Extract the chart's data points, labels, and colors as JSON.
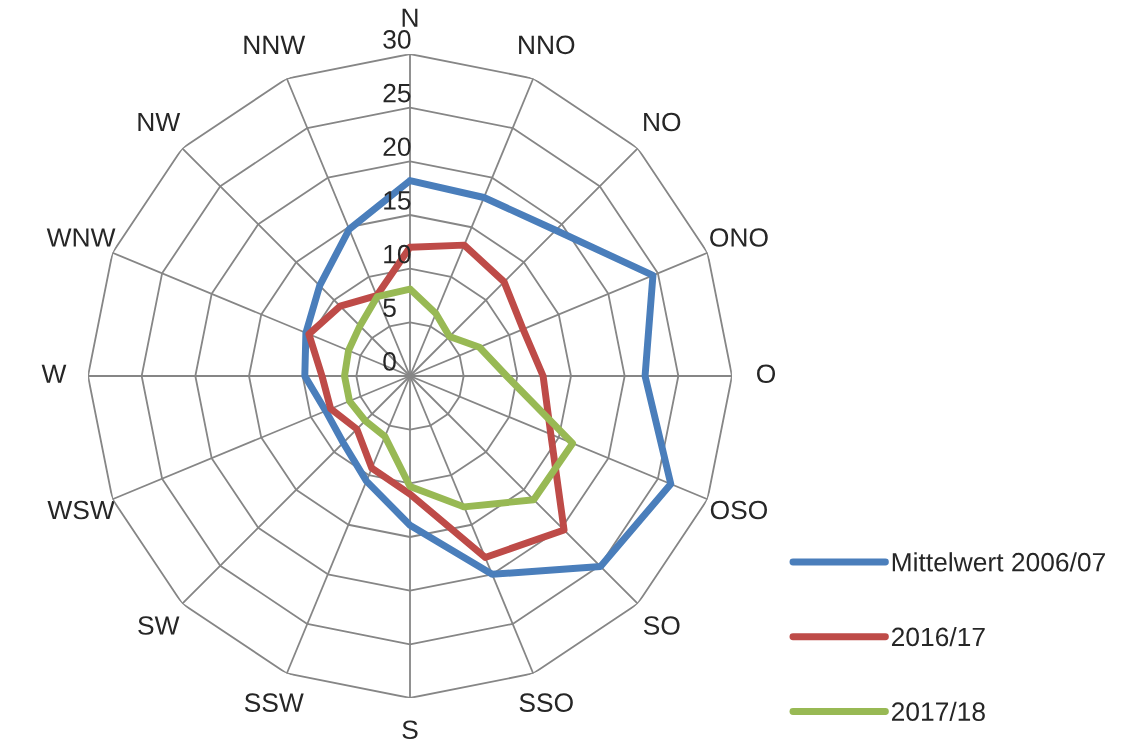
{
  "chart_data": {
    "type": "radar",
    "categories": [
      "N",
      "NNO",
      "NO",
      "ONO",
      "O",
      "OSO",
      "SO",
      "SSO",
      "S",
      "SSW",
      "SW",
      "WSW",
      "W",
      "WNW",
      "NW",
      "NNW"
    ],
    "series": [
      {
        "name": "Mittelwert 2006/07",
        "color": "#4a7ebb",
        "values": [
          18.2,
          18.0,
          19.2,
          24.5,
          21.9,
          26.3,
          25.1,
          20.0,
          13.9,
          10.6,
          8.8,
          8.5,
          9.8,
          10.5,
          11.9,
          14.8
        ]
      },
      {
        "name": "2016/17",
        "color": "#be4b48",
        "values": [
          12.0,
          13.2,
          12.4,
          11.4,
          12.4,
          14.2,
          20.3,
          18.3,
          11.0,
          9.3,
          7.0,
          8.0,
          8.2,
          10.2,
          9.2,
          8.1
        ]
      },
      {
        "name": "2017/18",
        "color": "#98b954",
        "values": [
          8.1,
          6.3,
          5.2,
          7.0,
          9.0,
          16.4,
          16.3,
          13.2,
          10.3,
          6.1,
          5.9,
          6.1,
          6.1,
          6.2,
          6.6,
          8.0
        ]
      }
    ],
    "ylim": [
      0,
      30
    ],
    "yticks": [
      0,
      5,
      10,
      15,
      20,
      25,
      30
    ],
    "grid": true,
    "legend": "bottom right",
    "line_style": "solid",
    "marker": "none"
  }
}
